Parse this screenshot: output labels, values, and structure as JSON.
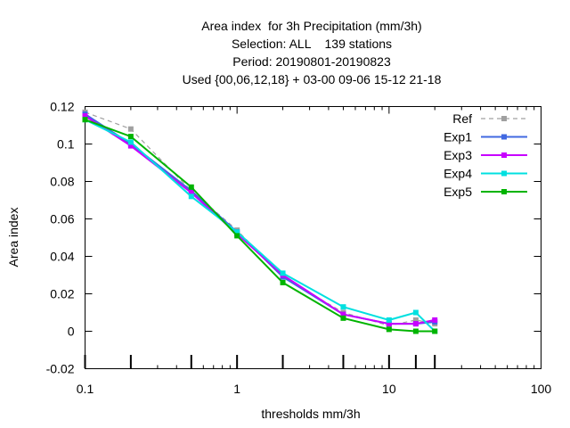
{
  "chart_data": {
    "type": "line",
    "title_lines": [
      "Area index  for 3h Precipitation (mm/3h)",
      "Selection: ALL    139 stations",
      "Period: 20190801-20190823",
      "Used {00,06,12,18} + 03-00 09-06 15-12 21-18"
    ],
    "xlabel": "thresholds mm/3h",
    "ylabel": "Area index",
    "x_scale": "log",
    "xlim": [
      0.1,
      100
    ],
    "ylim": [
      -0.02,
      0.12
    ],
    "x_ticks": [
      0.1,
      1,
      10,
      100
    ],
    "x_tick_labels": [
      "0.1",
      "1",
      "10",
      "100"
    ],
    "y_ticks": [
      -0.02,
      0,
      0.02,
      0.04,
      0.06,
      0.08,
      0.1,
      0.12
    ],
    "y_tick_labels": [
      "-0.02",
      "0",
      "0.02",
      "0.04",
      "0.06",
      "0.08",
      "0.1",
      "0.12"
    ],
    "threshold_marks": [
      0.1,
      0.2,
      0.5,
      1,
      2,
      5,
      10,
      15,
      20
    ],
    "grid": false,
    "legend_position": "top-right",
    "x": [
      0.1,
      0.2,
      0.5,
      1,
      2,
      5,
      10,
      15,
      20
    ],
    "series": [
      {
        "name": "Ref",
        "color": "#a0a0a0",
        "dashed": true,
        "values": [
          0.117,
          0.108,
          0.075,
          0.054,
          0.029,
          0.01,
          0.003,
          0.006,
          0.004
        ]
      },
      {
        "name": "Exp1",
        "color": "#4169e1",
        "dashed": false,
        "values": [
          0.116,
          0.1,
          0.075,
          0.053,
          0.029,
          0.009,
          0.004,
          0.004,
          0.005
        ]
      },
      {
        "name": "Exp3",
        "color": "#c800ff",
        "dashed": false,
        "values": [
          0.115,
          0.099,
          0.074,
          0.052,
          0.03,
          0.009,
          0.004,
          0.004,
          0.006
        ]
      },
      {
        "name": "Exp4",
        "color": "#00e0e0",
        "dashed": false,
        "values": [
          0.113,
          0.101,
          0.072,
          0.053,
          0.031,
          0.013,
          0.006,
          0.01,
          0.0
        ]
      },
      {
        "name": "Exp5",
        "color": "#00b400",
        "dashed": false,
        "values": [
          0.113,
          0.104,
          0.077,
          0.051,
          0.026,
          0.007,
          0.001,
          0.0,
          0.0
        ]
      }
    ]
  }
}
